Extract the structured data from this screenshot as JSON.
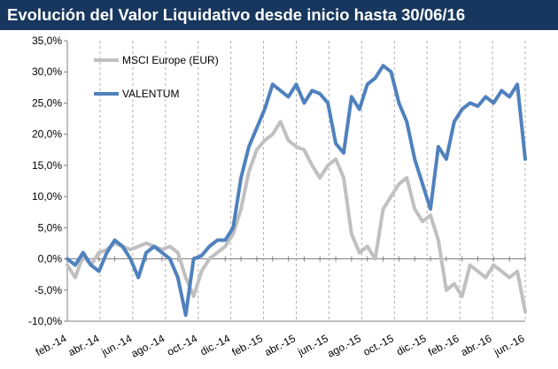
{
  "title": "Evolución del Valor Liquidativo desde inicio hasta 30/06/16",
  "chart_data": {
    "type": "line",
    "title": "Evolución del Valor Liquidativo desde inicio hasta 30/06/16",
    "xlabel": "",
    "ylabel": "",
    "ylim": [
      -10,
      35
    ],
    "y_ticks": [
      35,
      30,
      25,
      20,
      15,
      10,
      5,
      0,
      -5,
      -10
    ],
    "y_tick_labels": [
      "35,0%",
      "30,0%",
      "25,0%",
      "20,0%",
      "15,0%",
      "10,0%",
      "5,0%",
      "0,0%",
      "-5,0%",
      "-10,0%"
    ],
    "x_tick_labels": [
      "feb.-14",
      "abr.-14",
      "jun.-14",
      "ago.-14",
      "oct.-14",
      "dic.-14",
      "feb.-15",
      "abr.-15",
      "jun.-15",
      "ago.-15",
      "oct.-15",
      "dic.-15",
      "feb.-16",
      "abr.-16",
      "jun.-16"
    ],
    "x_range_months": [
      0,
      29
    ],
    "grid": "vertical dashed",
    "legend_position": "top-left",
    "series": [
      {
        "name": "MSCI Europe (EUR)",
        "color": "#c0c0c0",
        "x": [
          0,
          0.5,
          1,
          1.5,
          2,
          2.5,
          3,
          3.5,
          4,
          4.5,
          5,
          5.5,
          6,
          6.5,
          7,
          7.5,
          8,
          8.5,
          9,
          9.5,
          10,
          10.5,
          11,
          11.5,
          12,
          12.5,
          13,
          13.5,
          14,
          14.5,
          15,
          15.5,
          16,
          16.5,
          17,
          17.5,
          18,
          18.5,
          19,
          19.5,
          20,
          20.5,
          21,
          21.5,
          22,
          22.5,
          23,
          23.5,
          24,
          24.5,
          25,
          25.5,
          26,
          26.5,
          27,
          27.5,
          28,
          28.5,
          29
        ],
        "values": [
          -1,
          -3,
          0.5,
          -1,
          1,
          1.5,
          2.5,
          2,
          1.5,
          2,
          2.5,
          2,
          1.5,
          2,
          1,
          -3,
          -6,
          -2,
          0,
          1,
          2,
          4,
          8,
          14,
          17.5,
          19,
          20,
          22,
          19,
          18,
          17.5,
          15,
          13,
          15,
          16,
          13,
          4,
          1,
          2,
          0,
          8,
          10,
          12,
          13,
          8,
          6,
          7,
          3,
          -5,
          -4,
          -6,
          -1,
          -2,
          -3,
          -1,
          -2,
          -3,
          -2,
          -8.5
        ]
      },
      {
        "name": "VALENTUM",
        "color": "#4f81bd",
        "x": [
          0,
          0.5,
          1,
          1.5,
          2,
          2.5,
          3,
          3.5,
          4,
          4.5,
          5,
          5.5,
          6,
          6.5,
          7,
          7.5,
          8,
          8.5,
          9,
          9.5,
          10,
          10.5,
          11,
          11.5,
          12,
          12.5,
          13,
          13.5,
          14,
          14.5,
          15,
          15.5,
          16,
          16.5,
          17,
          17.5,
          18,
          18.5,
          19,
          19.5,
          20,
          20.5,
          21,
          21.5,
          22,
          22.5,
          23,
          23.5,
          24,
          24.5,
          25,
          25.5,
          26,
          26.5,
          27,
          27.5,
          28,
          28.5,
          29
        ],
        "values": [
          0,
          -1,
          1,
          -1,
          -2,
          1,
          3,
          2,
          0,
          -3,
          1,
          2,
          1,
          0,
          -3,
          -9,
          0,
          0.5,
          2,
          3,
          3,
          5,
          13,
          18,
          21,
          24,
          28,
          27,
          26,
          28,
          25,
          27,
          26.5,
          25,
          18.5,
          17,
          26,
          24,
          28,
          29,
          31,
          30,
          25,
          22,
          16,
          12,
          8,
          18,
          16,
          22,
          24,
          25,
          24.5,
          26,
          25,
          27,
          26,
          28,
          16
        ]
      }
    ]
  }
}
